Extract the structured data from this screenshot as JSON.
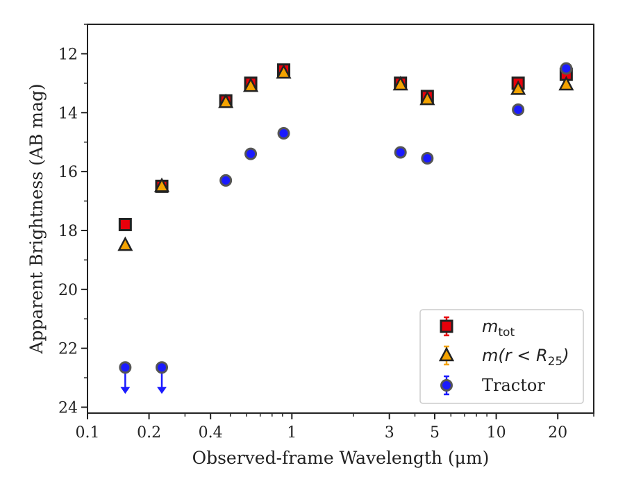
{
  "chart_data": {
    "type": "scatter",
    "xlabel": "Observed-frame Wavelength (μm)",
    "ylabel": "Apparent Brightness (AB mag)",
    "xscale": "log",
    "xlim": [
      0.1,
      30
    ],
    "ylim": [
      24.2,
      11.0
    ],
    "y_inverted": true,
    "x_ticks": [
      {
        "value": 0.1,
        "label": "0.1"
      },
      {
        "value": 0.2,
        "label": "0.2"
      },
      {
        "value": 0.4,
        "label": "0.4"
      },
      {
        "value": 1,
        "label": "1"
      },
      {
        "value": 3,
        "label": "3"
      },
      {
        "value": 5,
        "label": "5"
      },
      {
        "value": 10,
        "label": "10"
      },
      {
        "value": 20,
        "label": "20"
      }
    ],
    "y_ticks": [
      12,
      14,
      16,
      18,
      20,
      22,
      24
    ],
    "grid": false,
    "legend_position": "lower-right",
    "series": [
      {
        "name": "m_tot",
        "marker": "square",
        "color": "#e8000b",
        "x": [
          0.153,
          0.231,
          0.475,
          0.629,
          0.912,
          3.4,
          4.6,
          12.8,
          22.0
        ],
        "y": [
          17.8,
          16.5,
          13.6,
          13.0,
          12.55,
          13.0,
          13.45,
          13.0,
          12.7
        ]
      },
      {
        "name": "m(r<R25)",
        "marker": "triangle",
        "color": "#f4a300",
        "x": [
          0.153,
          0.231,
          0.475,
          0.629,
          0.912,
          3.4,
          4.6,
          12.8,
          22.0
        ],
        "y": [
          18.5,
          16.5,
          13.65,
          13.1,
          12.65,
          13.05,
          13.55,
          13.2,
          13.05
        ]
      },
      {
        "name": "Tractor",
        "marker": "circle",
        "color": "#1a1aff",
        "x": [
          0.153,
          0.231,
          0.475,
          0.629,
          0.912,
          3.4,
          4.6,
          12.8,
          22.0
        ],
        "y": [
          22.65,
          22.65,
          16.3,
          15.4,
          14.7,
          15.35,
          15.55,
          13.9,
          12.5
        ],
        "upper_limits": [
          true,
          true,
          false,
          false,
          false,
          false,
          false,
          false,
          false
        ]
      }
    ],
    "legend": [
      {
        "name": "m_tot",
        "base": "m",
        "sub": "tot"
      },
      {
        "name": "m(r<R25)",
        "base": "m(r < R",
        "sub": "25",
        "close": ")"
      },
      {
        "name": "Tractor",
        "label": "Tractor"
      }
    ]
  }
}
